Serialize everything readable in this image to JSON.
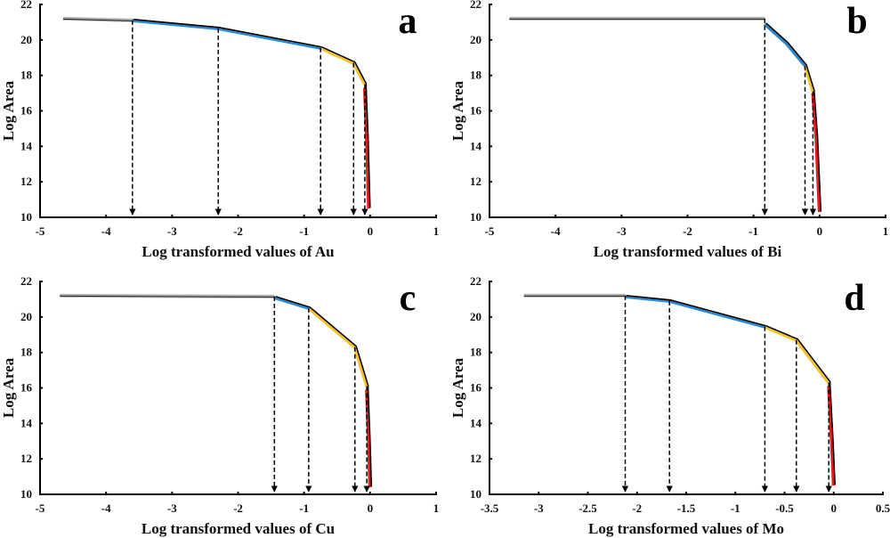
{
  "chart_data": [
    {
      "type": "line",
      "panel_label": "a",
      "xlabel": "Log transformed values of Au",
      "ylabel": "Log Area",
      "xlim": [
        -5,
        1
      ],
      "ylim": [
        10,
        22
      ],
      "xticks": [
        -5,
        -4,
        -3,
        -2,
        -1,
        0,
        1
      ],
      "yticks": [
        10,
        12,
        14,
        16,
        18,
        20,
        22
      ],
      "segments": [
        {
          "color": "#b0b0b0",
          "points": [
            [
              -4.65,
              21.2
            ],
            [
              -3.6,
              21.1
            ]
          ]
        },
        {
          "color": "#2f86c8",
          "points": [
            [
              -3.6,
              21.1
            ],
            [
              -2.3,
              20.65
            ],
            [
              -0.75,
              19.55
            ]
          ]
        },
        {
          "color": "#f2c230",
          "points": [
            [
              -0.75,
              19.55
            ],
            [
              -0.25,
              18.7
            ],
            [
              -0.08,
              17.5
            ]
          ]
        },
        {
          "color": "#e02020",
          "points": [
            [
              -0.08,
              17.3
            ],
            [
              -0.05,
              14.5
            ],
            [
              -0.02,
              10.5
            ]
          ]
        }
      ],
      "thresholds": [
        -3.6,
        -2.3,
        -0.75,
        -0.25,
        -0.08
      ]
    },
    {
      "type": "line",
      "panel_label": "b",
      "xlabel": "Log transformed values of Bi",
      "ylabel": "Log Area",
      "xlim": [
        -5,
        1
      ],
      "ylim": [
        10,
        22
      ],
      "xticks": [
        -5,
        -4,
        -3,
        -2,
        -1,
        0,
        1
      ],
      "yticks": [
        10,
        12,
        14,
        16,
        18,
        20,
        22
      ],
      "segments": [
        {
          "color": "#b0b0b0",
          "points": [
            [
              -4.7,
              21.2
            ],
            [
              -0.83,
              21.2
            ]
          ]
        },
        {
          "color": "#2f86c8",
          "points": [
            [
              -0.83,
              20.9
            ],
            [
              -0.5,
              19.8
            ],
            [
              -0.22,
              18.55
            ]
          ]
        },
        {
          "color": "#f2c230",
          "points": [
            [
              -0.22,
              18.55
            ],
            [
              -0.1,
              17.1
            ]
          ]
        },
        {
          "color": "#e02020",
          "points": [
            [
              -0.1,
              17.0
            ],
            [
              -0.05,
              14.5
            ],
            [
              0.0,
              10.3
            ]
          ]
        }
      ],
      "thresholds": [
        -0.83,
        -0.22,
        -0.1
      ]
    },
    {
      "type": "line",
      "panel_label": "c",
      "xlabel": "Log transformed values of Cu",
      "ylabel": "Log Area",
      "xlim": [
        -5,
        1
      ],
      "ylim": [
        10,
        22
      ],
      "xticks": [
        -5,
        -4,
        -3,
        -2,
        -1,
        0,
        1
      ],
      "yticks": [
        10,
        12,
        14,
        16,
        18,
        20,
        22
      ],
      "segments": [
        {
          "color": "#b0b0b0",
          "points": [
            [
              -4.7,
              21.2
            ],
            [
              -1.45,
              21.15
            ]
          ]
        },
        {
          "color": "#2f86c8",
          "points": [
            [
              -1.45,
              21.1
            ],
            [
              -0.93,
              20.5
            ]
          ]
        },
        {
          "color": "#f2c230",
          "points": [
            [
              -0.93,
              20.5
            ],
            [
              -0.23,
              18.3
            ],
            [
              -0.05,
              16.1
            ]
          ]
        },
        {
          "color": "#e02020",
          "points": [
            [
              -0.05,
              15.9
            ],
            [
              -0.02,
              13.0
            ],
            [
              0.0,
              10.4
            ]
          ]
        }
      ],
      "thresholds": [
        -1.45,
        -0.93,
        -0.23,
        -0.05
      ]
    },
    {
      "type": "line",
      "panel_label": "d",
      "xlabel": "Log transformed values of Mo",
      "ylabel": "Log Area",
      "xlim": [
        -3.5,
        0.5
      ],
      "ylim": [
        10,
        22
      ],
      "xticks": [
        -3.5,
        -3,
        -2.5,
        -2,
        -1.5,
        -1,
        -0.5,
        0,
        0.5
      ],
      "yticks": [
        10,
        12,
        14,
        16,
        18,
        20,
        22
      ],
      "segments": [
        {
          "color": "#b0b0b0",
          "points": [
            [
              -3.15,
              21.2
            ],
            [
              -2.12,
              21.2
            ]
          ]
        },
        {
          "color": "#2f86c8",
          "points": [
            [
              -2.12,
              21.15
            ],
            [
              -1.67,
              20.9
            ],
            [
              -0.7,
              19.45
            ]
          ]
        },
        {
          "color": "#f2c230",
          "points": [
            [
              -0.7,
              19.45
            ],
            [
              -0.38,
              18.7
            ],
            [
              -0.05,
              16.3
            ]
          ]
        },
        {
          "color": "#e02020",
          "points": [
            [
              -0.05,
              16.1
            ],
            [
              -0.02,
              13.0
            ],
            [
              0.0,
              10.5
            ]
          ]
        }
      ],
      "thresholds": [
        -2.12,
        -1.67,
        -0.7,
        -0.38,
        -0.05
      ]
    }
  ]
}
